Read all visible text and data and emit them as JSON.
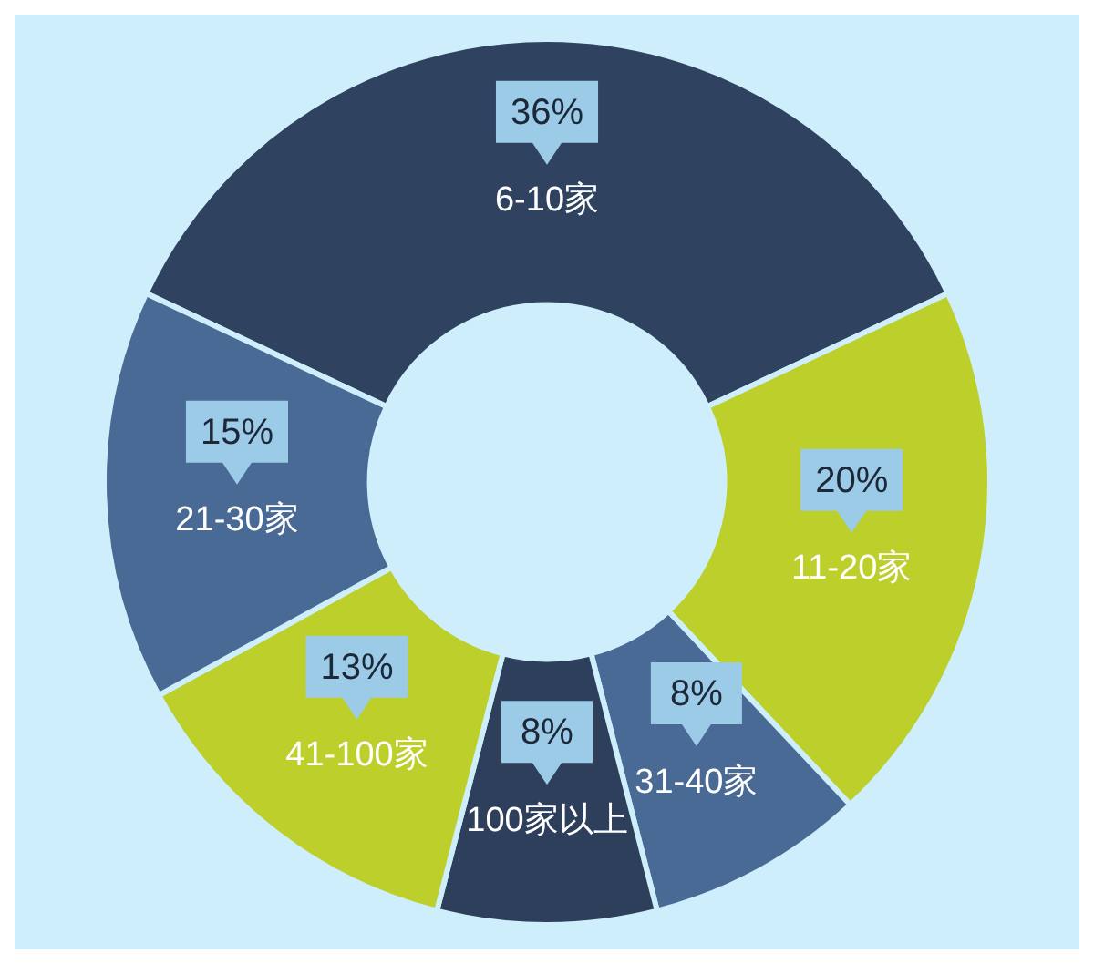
{
  "chart_data": {
    "type": "donut",
    "categories": [
      "6-10家",
      "11-20家",
      "31-40家",
      "100家以上",
      "41-100家",
      "21-30家"
    ],
    "values": [
      36,
      20,
      8,
      8,
      13,
      15
    ],
    "colors": [
      "#2f4360",
      "#bccf2a",
      "#4a6a96",
      "#2d3f5b",
      "#bccf2a",
      "#4a6a96"
    ],
    "value_labels": [
      "36%",
      "20%",
      "8%",
      "8%",
      "13%",
      "15%"
    ]
  }
}
